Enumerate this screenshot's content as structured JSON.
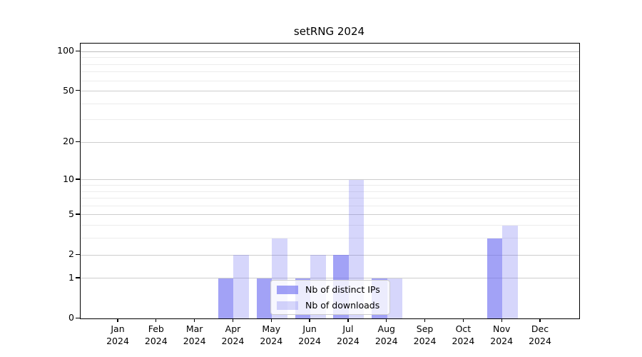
{
  "title": "setRNG 2024",
  "chart_data": {
    "type": "bar",
    "title": "setRNG 2024",
    "categories": [
      "Jan 2024",
      "Feb 2024",
      "Mar 2024",
      "Apr 2024",
      "May 2024",
      "Jun 2024",
      "Jul 2024",
      "Aug 2024",
      "Sep 2024",
      "Oct 2024",
      "Nov 2024",
      "Dec 2024"
    ],
    "series": [
      {
        "name": "Nb of distinct IPs",
        "color_rgba": "rgba(105,105,240,0.62)",
        "values": [
          0,
          0,
          0,
          1,
          1,
          1,
          2,
          1,
          0,
          0,
          3,
          0
        ]
      },
      {
        "name": "Nb of downloads",
        "color_rgba": "rgba(105,105,240,0.27)",
        "values": [
          0,
          0,
          0,
          2,
          3,
          2,
          10,
          1,
          0,
          0,
          4,
          0
        ]
      }
    ],
    "xlabel": "",
    "ylabel": "",
    "yscale": "log1p",
    "ylim": [
      0,
      115
    ],
    "yticks": [
      0,
      1,
      2,
      5,
      10,
      20,
      50,
      100
    ],
    "yticks_minor": [
      3,
      4,
      6,
      7,
      8,
      9,
      30,
      40,
      60,
      70,
      80,
      90
    ],
    "grid": true,
    "legend_position": "lower center"
  },
  "colors": {
    "bar_distinct_ips_flat": "#a4a4f6",
    "bar_downloads_flat": "#d9d9fa",
    "grid_major": "#cdcdcd",
    "grid_minor": "#ececec",
    "grid_top": "#bdbdbd",
    "spine": "#000000",
    "legend_border": "#cccccc"
  }
}
